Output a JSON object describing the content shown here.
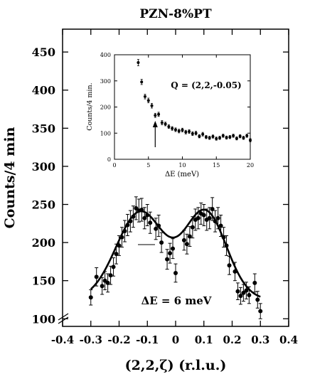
{
  "chart_data": [
    {
      "type": "scatter",
      "title": "PZN-8%PT",
      "xlabel": "(2,2,ζ) (r.l.u.)",
      "ylabel": "Counts/4 min",
      "xlim": [
        -0.4,
        0.4
      ],
      "ylim": [
        90,
        480
      ],
      "xticks": [
        -0.4,
        -0.3,
        -0.2,
        -0.1,
        0,
        0.1,
        0.2,
        0.3,
        0.4
      ],
      "xtick_labels": [
        "-0.4",
        "-0.3",
        "-0.2",
        "-0.1",
        "0",
        "0.1",
        "0.2",
        "0.3",
        "0.4"
      ],
      "yticks": [
        100,
        150,
        200,
        250,
        300,
        350,
        400,
        450
      ],
      "ytick_labels": [
        "100",
        "150",
        "200",
        "250",
        "300",
        "350",
        "400",
        "450"
      ],
      "annotation": "ΔE = 6 meV",
      "grid": false,
      "axis_break": true,
      "series": [
        {
          "kind": "points_with_errorbars",
          "x": [
            -0.3,
            -0.28,
            -0.26,
            -0.25,
            -0.24,
            -0.23,
            -0.22,
            -0.21,
            -0.2,
            -0.19,
            -0.18,
            -0.17,
            -0.16,
            -0.15,
            -0.14,
            -0.13,
            -0.12,
            -0.11,
            -0.1,
            -0.09,
            -0.07,
            -0.06,
            -0.05,
            -0.03,
            -0.02,
            -0.01,
            0.0,
            0.03,
            0.04,
            0.05,
            0.06,
            0.07,
            0.08,
            0.09,
            0.1,
            0.11,
            0.12,
            0.13,
            0.14,
            0.15,
            0.16,
            0.17,
            0.18,
            0.19,
            0.21,
            0.22,
            0.23,
            0.24,
            0.25,
            0.26,
            0.28,
            0.29,
            0.3
          ],
          "y": [
            128,
            155,
            143,
            150,
            147,
            157,
            168,
            185,
            196,
            207,
            215,
            223,
            228,
            234,
            245,
            242,
            243,
            232,
            236,
            226,
            218,
            222,
            200,
            178,
            186,
            192,
            160,
            203,
            198,
            208,
            220,
            230,
            232,
            238,
            236,
            230,
            232,
            244,
            228,
            232,
            222,
            207,
            196,
            170,
            162,
            136,
            130,
            134,
            137,
            131,
            147,
            125,
            110
          ],
          "yerr": [
            10,
            12,
            11,
            12,
            12,
            12,
            12,
            13,
            13,
            13,
            14,
            14,
            14,
            14,
            15,
            15,
            15,
            14,
            14,
            14,
            14,
            14,
            13,
            13,
            13,
            13,
            12,
            13,
            13,
            13,
            14,
            14,
            14,
            14,
            14,
            14,
            14,
            15,
            14,
            14,
            14,
            13,
            13,
            12,
            12,
            11,
            11,
            11,
            11,
            11,
            12,
            11,
            10
          ]
        },
        {
          "kind": "fit_curve",
          "model": "double_gaussian_plus_background",
          "background": 125,
          "peaks": [
            {
              "center": -0.125,
              "amplitude": 115,
              "sigma": 0.085
            },
            {
              "center": 0.105,
              "amplitude": 115,
              "sigma": 0.075
            }
          ],
          "x_range": [
            -0.3,
            0.3
          ]
        }
      ]
    },
    {
      "type": "scatter",
      "title": "",
      "xlabel": "ΔE (meV)",
      "ylabel": "Counts/4 min.",
      "xlim": [
        0,
        20
      ],
      "ylim": [
        0,
        400
      ],
      "xticks": [
        0,
        5,
        10,
        15,
        20
      ],
      "xtick_labels": [
        "0",
        "5",
        "10",
        "15",
        "20"
      ],
      "yticks": [
        0,
        100,
        200,
        300,
        400
      ],
      "ytick_labels": [
        "0",
        "100",
        "200",
        "300",
        "400"
      ],
      "annotation": "Q = (2,2,-0.05)",
      "arrow_at_x": 6,
      "grid": false,
      "series": [
        {
          "kind": "points_with_errorbars",
          "x": [
            3.5,
            4.0,
            4.5,
            5.0,
            5.5,
            6.0,
            6.5,
            7.0,
            7.5,
            8.0,
            8.5,
            9.0,
            9.5,
            10.0,
            10.5,
            11.0,
            11.5,
            12.0,
            12.5,
            13.0,
            13.5,
            14.0,
            14.5,
            15.0,
            15.5,
            16.0,
            16.5,
            17.0,
            17.5,
            18.0,
            18.5,
            19.0,
            19.5,
            20.0
          ],
          "y": [
            370,
            296,
            240,
            225,
            205,
            168,
            172,
            140,
            135,
            125,
            118,
            113,
            108,
            112,
            104,
            106,
            98,
            100,
            88,
            96,
            85,
            82,
            87,
            79,
            82,
            90,
            83,
            85,
            90,
            80,
            88,
            82,
            90,
            73
          ],
          "yerr": [
            12,
            10,
            9,
            9,
            9,
            8,
            8,
            8,
            7,
            7,
            7,
            7,
            7,
            7,
            7,
            7,
            7,
            7,
            6,
            7,
            6,
            6,
            6,
            6,
            6,
            6,
            6,
            6,
            6,
            6,
            6,
            6,
            6,
            6
          ]
        }
      ]
    }
  ]
}
